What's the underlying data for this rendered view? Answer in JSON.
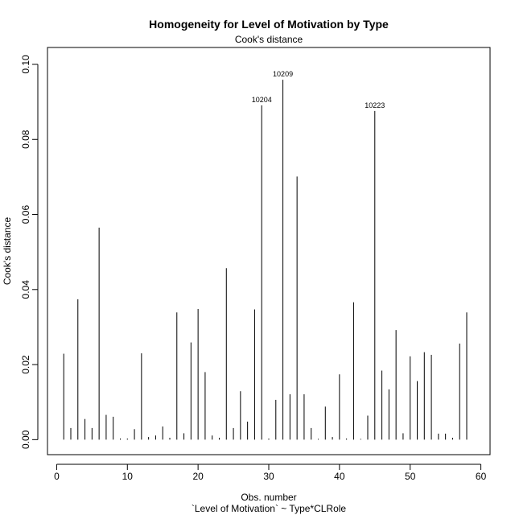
{
  "chart_data": {
    "type": "bar",
    "title": "Homogeneity for Level of Motivation by Type",
    "subtitle": "Cook's distance",
    "xlabel": "Obs. number",
    "xlabel2": "`Level of Motivation` ~ Type*CLRole",
    "ylabel": "Cook's distance",
    "xlim": [
      -1.3,
      61.3
    ],
    "ylim": [
      -0.004,
      0.1045
    ],
    "xticks": [
      "0",
      "10",
      "20",
      "30",
      "40",
      "50",
      "60"
    ],
    "xtick_values": [
      0,
      10,
      20,
      30,
      40,
      50,
      60
    ],
    "yticks": [
      "0.00",
      "0.02",
      "0.04",
      "0.06",
      "0.08",
      "0.10"
    ],
    "ytick_values": [
      0.0,
      0.02,
      0.04,
      0.06,
      0.08,
      0.1
    ],
    "x": [
      1,
      2,
      3,
      4,
      5,
      6,
      7,
      8,
      9,
      10,
      11,
      12,
      13,
      14,
      15,
      16,
      17,
      18,
      19,
      20,
      21,
      22,
      23,
      24,
      25,
      26,
      27,
      28,
      29,
      30,
      31,
      32,
      33,
      34,
      35,
      36,
      37,
      38,
      39,
      40,
      41,
      42,
      43,
      44,
      45,
      46,
      47,
      48,
      49,
      50,
      51,
      52,
      53,
      54,
      55,
      56,
      57,
      58
    ],
    "values": [
      0.0229,
      0.0031,
      0.0374,
      0.0055,
      0.0031,
      0.0565,
      0.0066,
      0.0061,
      0.0003,
      0.0003,
      0.0028,
      0.023,
      0.0007,
      0.0011,
      0.0035,
      0.0005,
      0.0339,
      0.0017,
      0.0259,
      0.0348,
      0.018,
      0.0011,
      0.0005,
      0.0457,
      0.0031,
      0.0129,
      0.0048,
      0.0347,
      0.0891,
      0.0003,
      0.0106,
      0.0959,
      0.0121,
      0.0701,
      0.0121,
      0.0031,
      0.0002,
      0.0088,
      0.0007,
      0.0174,
      0.0003,
      0.0366,
      0.0002,
      0.0064,
      0.0876,
      0.0184,
      0.0134,
      0.0292,
      0.0017,
      0.0222,
      0.0156,
      0.0233,
      0.0226,
      0.0016,
      0.0016,
      0.0005,
      0.0256,
      0.0339
    ],
    "labels": [
      {
        "x": 29,
        "text": "10204"
      },
      {
        "x": 32,
        "text": "10209"
      },
      {
        "x": 45,
        "text": "10223"
      }
    ],
    "grid": false,
    "legend": "none"
  }
}
